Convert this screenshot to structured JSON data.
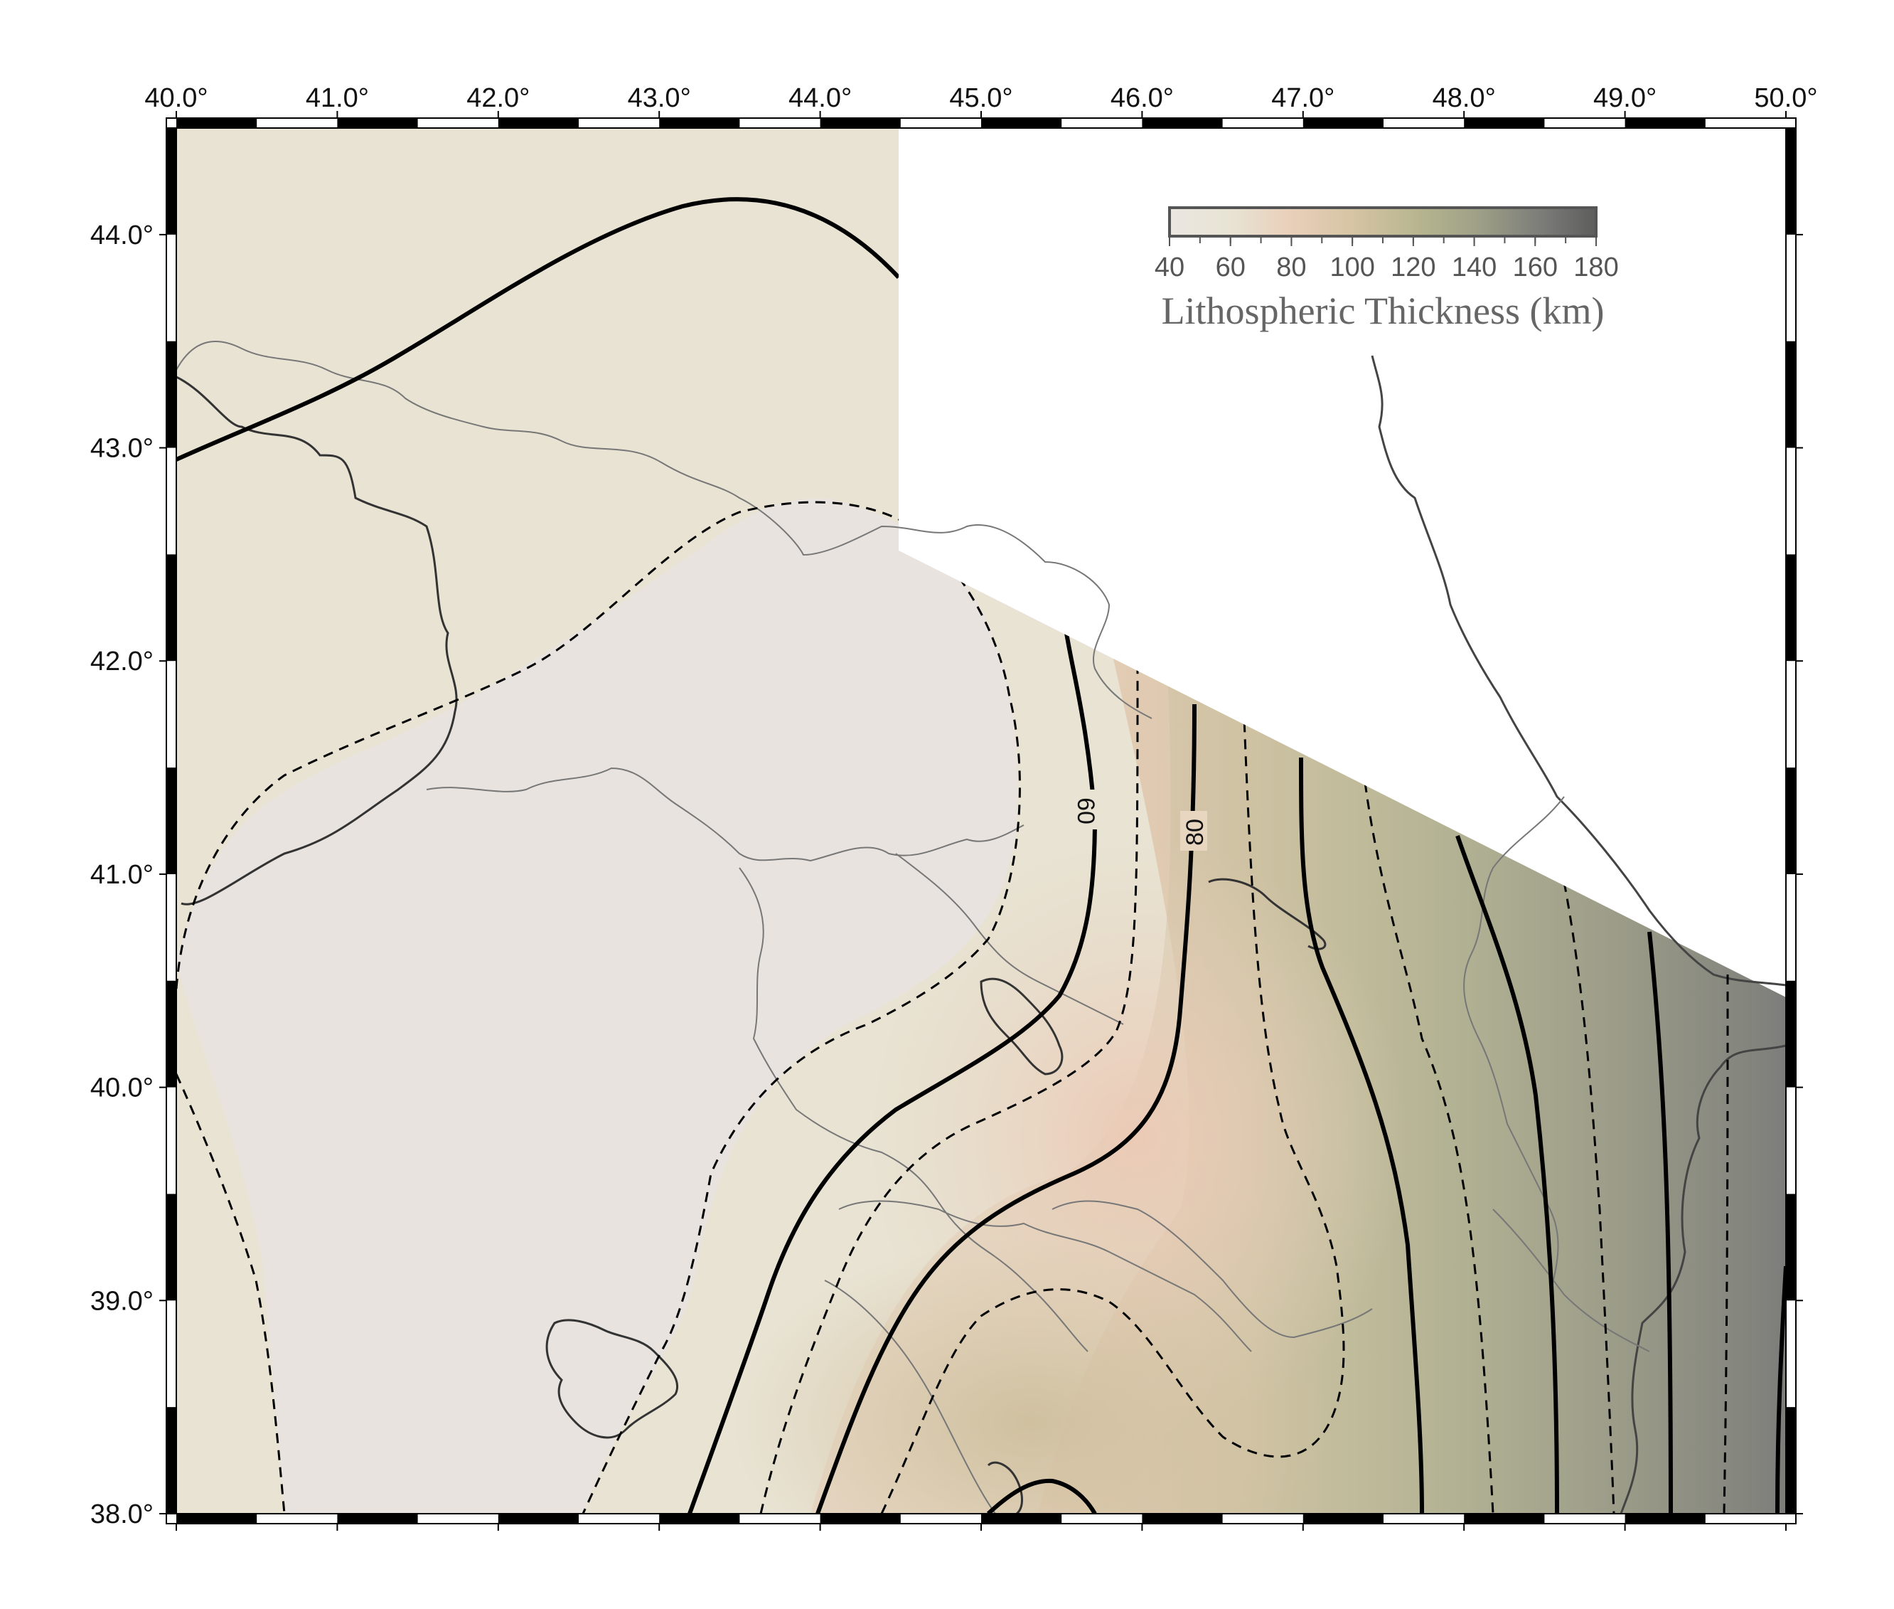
{
  "map": {
    "lon_ticks": [
      "40.0°",
      "41.0°",
      "42.0°",
      "43.0°",
      "44.0°",
      "45.0°",
      "46.0°",
      "47.0°",
      "48.0°",
      "49.0°",
      "50.0°"
    ],
    "lat_ticks": [
      "44.0°",
      "43.0°",
      "42.0°",
      "41.0°",
      "40.0°",
      "39.0°",
      "38.0°"
    ],
    "contour_labels": [
      "60",
      "80"
    ]
  },
  "colorbar": {
    "ticks": [
      "40",
      "60",
      "80",
      "100",
      "120",
      "140",
      "160",
      "180"
    ],
    "title": "Lithospheric Thickness (km)",
    "stops": [
      "#ebe7e1",
      "#e8e3d3",
      "#e9cfb9",
      "#d6c4a4",
      "#b9b791",
      "#a0a287",
      "#7f807b",
      "#5d5d5d"
    ]
  }
}
